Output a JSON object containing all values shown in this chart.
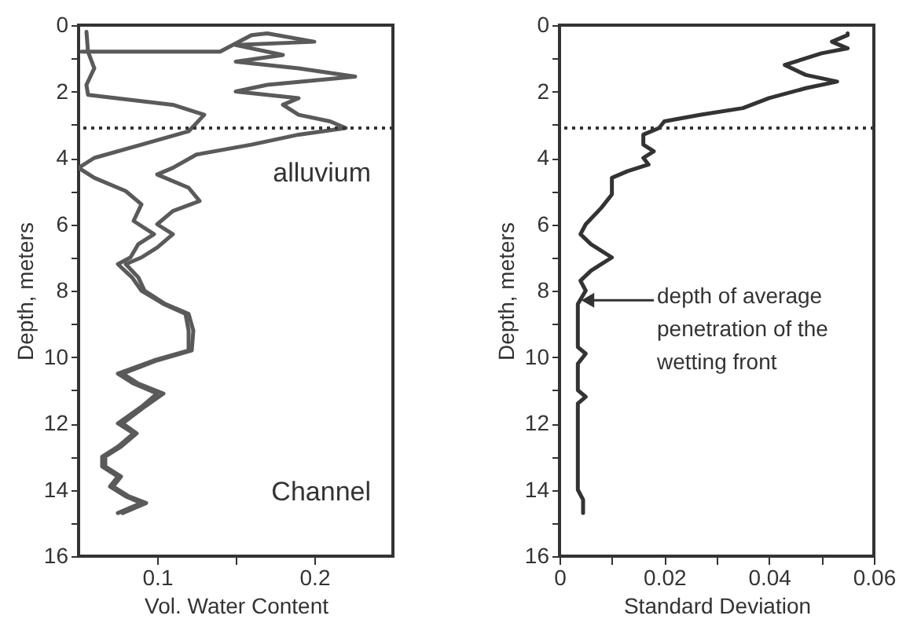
{
  "chart_data": [
    {
      "type": "line",
      "xlabel": "Vol. Water Content",
      "ylabel": "Depth, meters",
      "xlim": [
        0.05,
        0.25
      ],
      "ylim": [
        16,
        0
      ],
      "xticks": [
        0.1,
        {
          "value": 0.15,
          "label": null
        },
        0.2
      ],
      "yticks": [
        0,
        {
          "value": 1,
          "label": null
        },
        2,
        {
          "value": 3,
          "label": null
        },
        4,
        {
          "value": 5,
          "label": null
        },
        6,
        {
          "value": 7,
          "label": null
        },
        8,
        {
          "value": 9,
          "label": null
        },
        10,
        {
          "value": 11,
          "label": null
        },
        12,
        {
          "value": 13,
          "label": null
        },
        14,
        {
          "value": 15,
          "label": null
        },
        16
      ],
      "grid": false,
      "ref_lines": [
        {
          "axis": "y",
          "value": 3.1,
          "line_style": "dotted",
          "color": "#333333"
        }
      ],
      "annotations": [
        "alluvium",
        "Channel"
      ],
      "series": [
        {
          "color": "#5a5a5a",
          "x": [
            0.052,
            0.14,
            0.16,
            0.17,
            0.2,
            0.15,
            0.18,
            0.15,
            0.19,
            0.226,
            0.17,
            0.15,
            0.19,
            0.18,
            0.19,
            0.21,
            0.22,
            0.19,
            0.16,
            0.125,
            0.11,
            0.1,
            0.12,
            0.127,
            0.11,
            0.1,
            0.11,
            0.1,
            0.09,
            0.08,
            0.088,
            0.092,
            0.105,
            0.12,
            0.123,
            0.122,
            0.1,
            0.078,
            0.088,
            0.104,
            0.092,
            0.078,
            0.087,
            0.077,
            0.067,
            0.067,
            0.077,
            0.072,
            0.082,
            0.093,
            0.078
          ],
          "values": [
            0.8,
            0.8,
            0.3,
            0.25,
            0.5,
            0.6,
            0.9,
            1.1,
            1.3,
            1.55,
            1.8,
            2.0,
            2.2,
            2.4,
            2.7,
            2.9,
            3.1,
            3.3,
            3.6,
            3.9,
            4.3,
            4.5,
            4.9,
            5.3,
            5.6,
            6.0,
            6.3,
            6.7,
            7.0,
            7.2,
            7.6,
            8.0,
            8.4,
            8.7,
            9.2,
            9.8,
            10.1,
            10.5,
            10.8,
            11.1,
            11.5,
            12.0,
            12.3,
            12.7,
            13.0,
            13.3,
            13.6,
            13.9,
            14.2,
            14.4,
            14.7
          ]
        },
        {
          "color": "#5a5a5a",
          "x": [
            0.055,
            0.056,
            0.06,
            0.055,
            0.056,
            0.11,
            0.13,
            0.12,
            0.09,
            0.06,
            0.05,
            0.06,
            0.08,
            0.09,
            0.085,
            0.098,
            0.088,
            0.083,
            0.075,
            0.084,
            0.09,
            0.104,
            0.118,
            0.12,
            0.12,
            0.098,
            0.075,
            0.085,
            0.1,
            0.09,
            0.075,
            0.085,
            0.075,
            0.065,
            0.065,
            0.075,
            0.07,
            0.08,
            0.09,
            0.075
          ],
          "values": [
            0.2,
            0.8,
            1.3,
            1.8,
            2.1,
            2.4,
            2.7,
            3.2,
            3.6,
            4.0,
            4.3,
            4.6,
            5.0,
            5.4,
            5.9,
            6.3,
            6.6,
            7.0,
            7.2,
            7.6,
            8.0,
            8.4,
            8.7,
            9.2,
            9.8,
            10.1,
            10.5,
            10.8,
            11.1,
            11.5,
            12.0,
            12.3,
            12.7,
            13.0,
            13.3,
            13.6,
            13.9,
            14.2,
            14.4,
            14.7
          ]
        }
      ]
    },
    {
      "type": "line",
      "xlabel": "Standard Deviation",
      "ylabel": "Depth, meters",
      "xlim": [
        0,
        0.06
      ],
      "ylim": [
        16,
        0
      ],
      "xticks": [
        0,
        {
          "value": 0.01,
          "label": null
        },
        0.02,
        {
          "value": 0.03,
          "label": null
        },
        0.04,
        {
          "value": 0.05,
          "label": null
        },
        0.06
      ],
      "yticks": [
        0,
        {
          "value": 1,
          "label": null
        },
        2,
        {
          "value": 3,
          "label": null
        },
        4,
        {
          "value": 5,
          "label": null
        },
        6,
        {
          "value": 7,
          "label": null
        },
        8,
        {
          "value": 9,
          "label": null
        },
        10,
        {
          "value": 11,
          "label": null
        },
        12,
        {
          "value": 13,
          "label": null
        },
        14,
        {
          "value": 15,
          "label": null
        },
        16
      ],
      "grid": false,
      "ref_lines": [
        {
          "axis": "y",
          "value": 3.1,
          "line_style": "dotted",
          "color": "#333333"
        }
      ],
      "annotations": [
        "depth of average\npenetration of the\nwetting front"
      ],
      "series": [
        {
          "color": "#333333",
          "x": [
            0.055,
            0.055,
            0.052,
            0.055,
            0.05,
            0.043,
            0.047,
            0.053,
            0.047,
            0.04,
            0.035,
            0.027,
            0.02,
            0.019,
            0.016,
            0.016,
            0.018,
            0.016,
            0.017,
            0.013,
            0.01,
            0.01,
            0.008,
            0.005,
            0.004,
            0.006,
            0.01,
            0.006,
            0.004,
            0.005,
            0.0035,
            0.0035,
            0.005,
            0.0035,
            0.0035,
            0.005,
            0.0035,
            0.0035,
            0.0045,
            0.0045
          ],
          "values": [
            0.25,
            0.3,
            0.5,
            0.7,
            0.85,
            1.2,
            1.5,
            1.7,
            1.9,
            2.2,
            2.5,
            2.7,
            2.9,
            3.1,
            3.3,
            3.6,
            3.8,
            4.0,
            4.2,
            4.4,
            4.6,
            5.1,
            5.5,
            6.0,
            6.3,
            6.6,
            7.0,
            7.4,
            7.7,
            8.0,
            8.4,
            9.7,
            9.9,
            10.2,
            11.0,
            11.2,
            11.4,
            14.0,
            14.3,
            14.7
          ]
        }
      ]
    }
  ]
}
